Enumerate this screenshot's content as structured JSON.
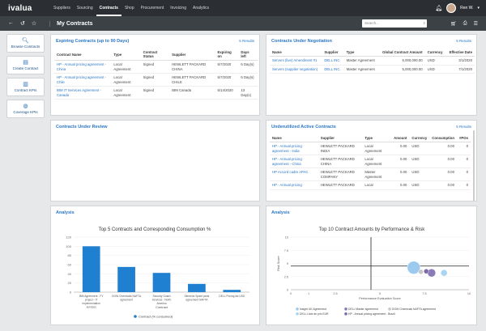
{
  "brand": "ivalua",
  "nav": [
    "Suppliers",
    "Sourcing",
    "Contracts",
    "Shop",
    "Procurement",
    "Invoicing",
    "Analytics"
  ],
  "nav_active_index": 2,
  "user_name": "Ren W.",
  "page_title": "My Contracts",
  "search_placeholder": "Search...",
  "sidebar": [
    {
      "icon": "search-icon",
      "label": "Browse Contracts"
    },
    {
      "icon": "document-plus-icon",
      "label": "Create Contract"
    },
    {
      "icon": "document-chart-icon",
      "label": "Contract KPIs"
    },
    {
      "icon": "globe-icon",
      "label": "Coverage KPIs"
    }
  ],
  "expiring": {
    "title": "Expiring Contracts (up to 90 Days)",
    "link": "5 Results",
    "headers": [
      "Contract Name",
      "Type",
      "Contract Status",
      "Supplier",
      "Expiring on",
      "Days left"
    ],
    "rows": [
      [
        "HP - Annual pricing agreement - China",
        "Local Agreement",
        "Signed",
        "HEWLETT PACKARD CHINA",
        "5/7/2020",
        "6 Day(s)"
      ],
      [
        "HP - Annual pricing agreement - Chile",
        "Local Agreement",
        "Signed",
        "HEWLETT PACKARD CHILE",
        "5/7/2020",
        "6 Day(s)"
      ],
      [
        "IBM IT Services Agreement - Canada",
        "Local Agreement",
        "Signed",
        "IBM Canada",
        "5/14/2020",
        "13 Day(s)"
      ]
    ]
  },
  "negotiation": {
    "title": "Contracts Under Negotiation",
    "link": "5 Results",
    "headers": [
      "Name",
      "Supplier",
      "Type",
      "Global Contract Amount",
      "Currency",
      "Effective Date"
    ],
    "rows": [
      [
        "Servers (live) Amendment #1",
        "DELL INC.",
        "Master Agreement",
        "5,000,000.00",
        "USD",
        "3/1/2020"
      ],
      [
        "Servers (supplier negotiation)",
        "DELL INC.",
        "Master Agreement",
        "5,000,000.00",
        "USD",
        "7/1/2020"
      ]
    ]
  },
  "review": {
    "title": "Contracts Under Review"
  },
  "underutilized": {
    "title": "Underutilized Active Contracts",
    "link": "5 Results",
    "headers": [
      "Name",
      "Supplier",
      "Type",
      "Amount",
      "Currency",
      "Consumption",
      "#POs"
    ],
    "rows": [
      [
        "HP - Annual pricing agreement - India",
        "HEWLETT PACKARD INDIA",
        "Local Agreement",
        "0.00",
        "USD",
        "0.00",
        "0"
      ],
      [
        "HP - Annual pricing agreement - China",
        "HEWLETT PACKARD CHINA",
        "Local Agreement",
        "0.00",
        "USD",
        "0.00",
        "0"
      ],
      [
        "HP Accord cadre APAC",
        "HEWLETT PACKARD COMPANY",
        "Master Agreement",
        "0.00",
        "USD",
        "0.00",
        "0"
      ],
      [
        "HP - Annual pricing",
        "HEWLETT PACKARD",
        "Local",
        "0.00",
        "USD",
        "0.00",
        "0"
      ]
    ]
  },
  "analysis_left": {
    "title": "Analysis"
  },
  "analysis_right": {
    "title": "Analysis"
  },
  "chart_data": [
    {
      "type": "bar",
      "title": "Top 5 Contracts and Corresponding Consumption %",
      "categories": [
        "IBM Agreement - FY project - IT implementation services",
        "DOW Chemicals NAFTA agreement",
        "Security Guard Services - North America",
        "Siemens Spare parts agreement NAFTA",
        "DELL Pricing list USD"
      ],
      "values": [
        100,
        55,
        42,
        18,
        5
      ],
      "ylim": [
        0,
        120
      ],
      "yticks": [
        "120",
        "100",
        "80",
        "60",
        "40",
        "20",
        "0"
      ],
      "xlabel": "Contract",
      "legend": [
        "Contract (% consumed)"
      ],
      "color": "#1f7fd0"
    },
    {
      "type": "scatter",
      "title": "Top 10 Contract Amounts by Performance & Risk",
      "xlabel": "Performance Evaluation Score",
      "ylabel": "Risk Score",
      "xlim": [
        0,
        10
      ],
      "ylim": [
        0,
        10
      ],
      "xticks": [
        "0",
        "1",
        "2.5",
        "5",
        "7.5",
        "10"
      ],
      "yticks": [
        "10",
        "7.5",
        "5",
        "2.5",
        "0"
      ],
      "series": [
        {
          "name": "Insight UK Agreement",
          "x": 6.9,
          "y": 4.2,
          "r": 8,
          "color": "#9cc9ee"
        },
        {
          "name": "DELL Master agreement",
          "x": 7.9,
          "y": 3.2,
          "r": 5,
          "color": "#8a7ab8"
        },
        {
          "name": "DOW Chemicals NAFTA agreement",
          "x": 7.3,
          "y": 3.4,
          "r": 3,
          "color": "#c7c7c7"
        },
        {
          "name": "DELL Lists de prix EUR",
          "x": 8.6,
          "y": 3.2,
          "r": 4,
          "color": "#a9d4f2"
        },
        {
          "name": "HP - Annual pricing agreement - Brazil",
          "x": 7.6,
          "y": 3.5,
          "r": 3,
          "color": "#7a6aa8"
        }
      ]
    }
  ]
}
